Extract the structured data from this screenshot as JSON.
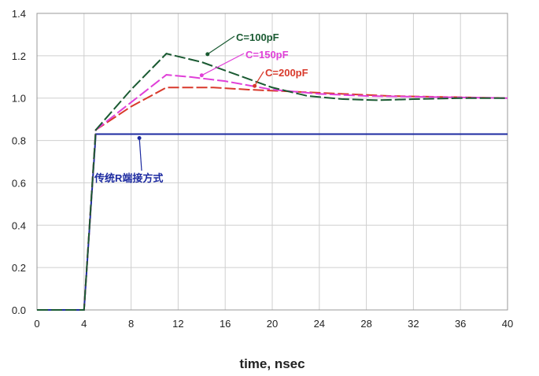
{
  "chart_data": {
    "type": "line",
    "xlabel": "time, nsec",
    "ylabel": "",
    "xlim": [
      0,
      40
    ],
    "ylim": [
      0,
      1.4
    ],
    "xticks": [
      0,
      4,
      8,
      12,
      16,
      20,
      24,
      28,
      32,
      36,
      40
    ],
    "yticks": [
      "0.0",
      "0.2",
      "0.4",
      "0.6",
      "0.8",
      "1.0",
      "1.2",
      "1.4"
    ],
    "grid": true,
    "series": [
      {
        "name": "传统R端接方式",
        "color": "#1c2aa0",
        "dash": "solid",
        "x": [
          0,
          4,
          5,
          40
        ],
        "y": [
          0,
          0,
          0.83,
          0.83
        ]
      },
      {
        "name": "C=200pF",
        "color": "#d8392b",
        "dash": "dashed",
        "x": [
          0,
          4,
          5,
          8,
          11,
          15,
          18,
          22,
          26,
          30,
          35,
          40
        ],
        "y": [
          0,
          0,
          0.85,
          0.96,
          1.05,
          1.05,
          1.04,
          1.03,
          1.02,
          1.01,
          1.005,
          1.0
        ]
      },
      {
        "name": "C=150pF",
        "color": "#e040d8",
        "dash": "dashed",
        "x": [
          0,
          4,
          5,
          8,
          11,
          13,
          16,
          20,
          24,
          28,
          34,
          40
        ],
        "y": [
          0,
          0,
          0.85,
          0.98,
          1.11,
          1.1,
          1.08,
          1.04,
          1.02,
          1.01,
          1.005,
          1.0
        ]
      },
      {
        "name": "C=100pF",
        "color": "#1a5a32",
        "dash": "dashed",
        "x": [
          0,
          4,
          5,
          8,
          11,
          14,
          17,
          20,
          23,
          26,
          29,
          32,
          36,
          40
        ],
        "y": [
          0,
          0,
          0.85,
          1.04,
          1.21,
          1.17,
          1.11,
          1.05,
          1.01,
          0.995,
          0.99,
          0.995,
          1.0,
          1.0
        ]
      }
    ],
    "annotations": [
      {
        "text": "C=100pF",
        "color": "#1a5a32",
        "at": [
          14.5,
          1.2
        ]
      },
      {
        "text": "C=150pF",
        "color": "#e040d8",
        "at": [
          14,
          1.1
        ]
      },
      {
        "text": "C=200pF",
        "color": "#d8392b",
        "at": [
          18.5,
          1.05
        ]
      },
      {
        "text": "传统R端接方式",
        "color": "#1c2aa0",
        "at": [
          8.7,
          0.83
        ]
      }
    ]
  }
}
